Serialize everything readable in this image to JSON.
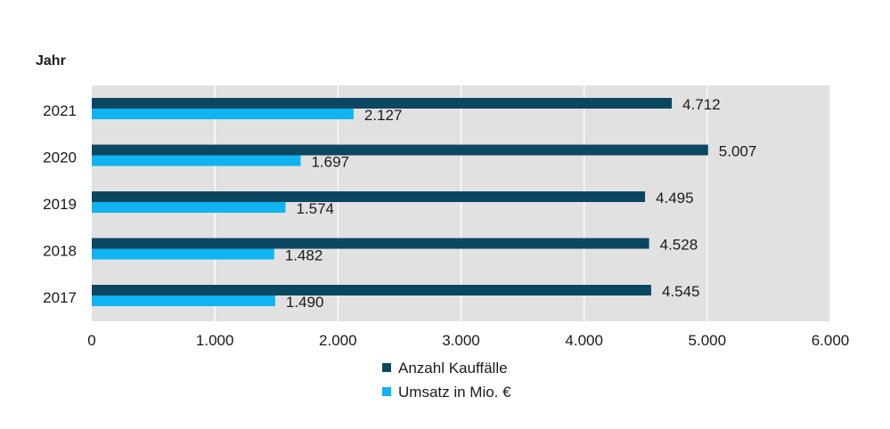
{
  "chart_data": {
    "type": "bar",
    "orientation": "horizontal",
    "title": "",
    "ylabel": "Jahr",
    "xlabel": "",
    "categories": [
      "2021",
      "2020",
      "2019",
      "2018",
      "2017"
    ],
    "series": [
      {
        "name": "Anzahl Kauffälle",
        "color": "#0c4762",
        "values": [
          4712,
          5007,
          4495,
          4528,
          4545
        ],
        "labels": [
          "4.712",
          "5.007",
          "4.495",
          "4.528",
          "4.545"
        ]
      },
      {
        "name": "Umsatz in Mio. €",
        "color": "#0fb4f0",
        "values": [
          2127,
          1697,
          1574,
          1482,
          1490
        ],
        "labels": [
          "2.127",
          "1.697",
          "1.574",
          "1.482",
          "1.490"
        ]
      }
    ],
    "xlim": [
      0,
      6000
    ],
    "xticks": [
      0,
      1000,
      2000,
      3000,
      4000,
      5000,
      6000
    ],
    "xtick_labels": [
      "0",
      "1.000",
      "2.000",
      "3.000",
      "4.000",
      "5.000",
      "6.000"
    ],
    "grid": "vertical",
    "plot_background": "#e1e1e1",
    "legend_position": "bottom"
  }
}
